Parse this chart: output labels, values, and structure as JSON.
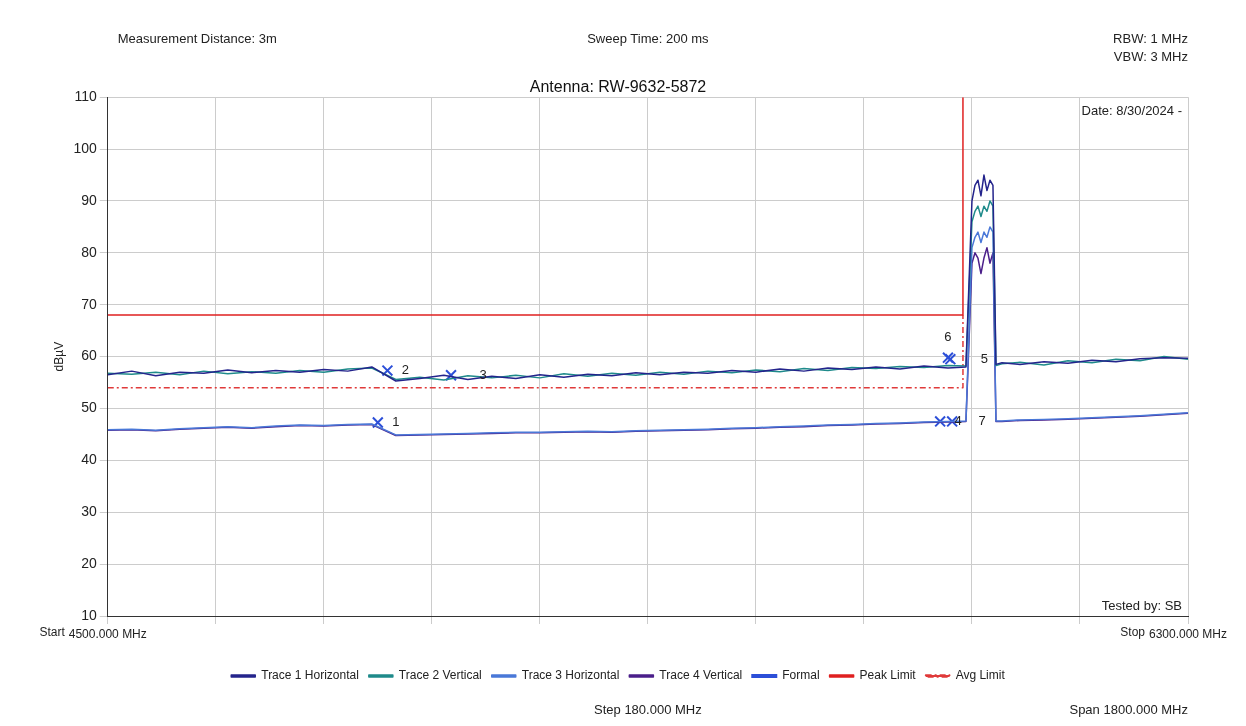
{
  "chart_data": {
    "type": "line",
    "title": "Antenna: RW-9632-5872",
    "ylabel": "dBµV",
    "xlim": [
      4500,
      6300
    ],
    "ylim": [
      10,
      110
    ],
    "xticks": [
      {
        "value": 4500,
        "label": "4500.000 MHz"
      },
      {
        "value": 4680,
        "label": null
      },
      {
        "value": 4860,
        "label": null
      },
      {
        "value": 5040,
        "label": null
      },
      {
        "value": 5220,
        "label": null
      },
      {
        "value": 5400,
        "label": null
      },
      {
        "value": 5580,
        "label": null
      },
      {
        "value": 5760,
        "label": null
      },
      {
        "value": 5940,
        "label": null
      },
      {
        "value": 6120,
        "label": null
      },
      {
        "value": 6300,
        "label": "6300.000 MHz"
      }
    ],
    "yticks": [
      10,
      20,
      30,
      40,
      50,
      60,
      70,
      80,
      90,
      100,
      110
    ],
    "grid": true,
    "legend": "bottom",
    "x": [
      4500,
      4540,
      4580,
      4620,
      4660,
      4700,
      4740,
      4780,
      4820,
      4860,
      4900,
      4940,
      4980,
      5020,
      5060,
      5100,
      5140,
      5180,
      5220,
      5260,
      5300,
      5340,
      5380,
      5420,
      5460,
      5500,
      5540,
      5580,
      5620,
      5660,
      5700,
      5740,
      5780,
      5820,
      5860,
      5900,
      5930,
      5940,
      5945,
      5950,
      5955,
      5960,
      5965,
      5970,
      5975,
      5980,
      5990,
      6020,
      6060,
      6100,
      6140,
      6180,
      6220,
      6260,
      6300
    ],
    "series": [
      {
        "name": "Trace 1 Horizontal",
        "color": "#24248c",
        "values": [
          56.5,
          57.2,
          56.3,
          57,
          56.8,
          57.4,
          56.9,
          57.3,
          57,
          57.5,
          57.2,
          58,
          55.3,
          55.8,
          56.4,
          55.6,
          56.2,
          55.8,
          56.5,
          56,
          56.6,
          56.3,
          56.9,
          56.5,
          57,
          56.8,
          57.3,
          57,
          57.6,
          57.2,
          57.8,
          57.5,
          58,
          57.6,
          58.2,
          57.8,
          58,
          90,
          93,
          94,
          91,
          95,
          92,
          94,
          93,
          58.5,
          58.8,
          58.5,
          59,
          58.7,
          59.3,
          59,
          59.6,
          59.8,
          59.7
        ]
      },
      {
        "name": "Trace 2 Vertical",
        "color": "#1f8b8b",
        "values": [
          56.8,
          56.6,
          57,
          56.5,
          57.2,
          56.7,
          57.1,
          56.8,
          57.3,
          57,
          57.6,
          57.8,
          55.6,
          56,
          55.5,
          56.3,
          55.9,
          56.4,
          55.9,
          56.7,
          56.2,
          56.8,
          56.4,
          57,
          56.6,
          57.2,
          56.9,
          57.4,
          57.1,
          57.7,
          57.3,
          57.9,
          57.7,
          58.1,
          57.9,
          58.3,
          58.2,
          86,
          88,
          89,
          87,
          89,
          88,
          90,
          89,
          58.3,
          58.6,
          58.9,
          58.4,
          59.2,
          58.8,
          59.5,
          59.2,
          60,
          59.5
        ]
      },
      {
        "name": "Trace 3 Horizontal",
        "color": "#4a78d8",
        "values": [
          45.9,
          46,
          45.8,
          46.1,
          46.3,
          46.5,
          46.3,
          46.6,
          46.8,
          46.7,
          46.9,
          47,
          44.9,
          45,
          45.1,
          45.2,
          45.3,
          45.4,
          45.4,
          45.5,
          45.6,
          45.5,
          45.7,
          45.8,
          45.9,
          46,
          46.2,
          46.3,
          46.5,
          46.6,
          46.8,
          46.9,
          47.1,
          47.2,
          47.4,
          47.5,
          47.6,
          81,
          83,
          84,
          82,
          84,
          83,
          85,
          84,
          47.6,
          47.6,
          47.8,
          47.9,
          48,
          48.2,
          48.4,
          48.6,
          48.9,
          49.2
        ]
      },
      {
        "name": "Trace 4 Vertical",
        "color": "#4b1f8a",
        "values": [
          45.8,
          45.9,
          45.7,
          46,
          46.2,
          46.4,
          46.2,
          46.5,
          46.7,
          46.6,
          46.8,
          46.9,
          44.8,
          44.9,
          45,
          45.1,
          45.2,
          45.3,
          45.3,
          45.4,
          45.5,
          45.4,
          45.6,
          45.7,
          45.8,
          45.9,
          46.1,
          46.2,
          46.4,
          46.5,
          46.7,
          46.8,
          47,
          47.1,
          47.3,
          47.4,
          47.5,
          78,
          80,
          79,
          76,
          79,
          81,
          78,
          80,
          47.5,
          47.5,
          47.7,
          47.8,
          47.9,
          48.1,
          48.3,
          48.5,
          48.8,
          49.1
        ]
      },
      {
        "name": "Formal",
        "type": "scatter",
        "marker": "cross",
        "color": "#2c4fd8",
        "x": [
          4950,
          4966,
          5072,
          5887,
          5904,
          5900,
          5907
        ],
        "values": [
          47.3,
          57.3,
          56.4,
          47.5,
          59.5,
          59.8,
          47.5
        ]
      },
      {
        "name": "Peak Limit",
        "color": "#e02020",
        "x": [
          4500,
          5925,
          5925
        ],
        "values": [
          68,
          68,
          110
        ]
      },
      {
        "name": "Avg Limit",
        "line_style": "dashed",
        "color": "#e03a3a",
        "x": [
          4500,
          5925,
          5925
        ],
        "values": [
          54,
          54,
          68
        ]
      }
    ],
    "annotations": [
      "Measurement Distance: 3m",
      "Sweep Time: 200 ms",
      "RBW: 1 MHz",
      "VBW: 3 MHz",
      "Date: 8/30/2024 -",
      "Tested by: SB",
      "Start",
      "Stop",
      "Step 180.000 MHz",
      "Span 1800.000 MHz",
      {
        "text": "1",
        "x": 4950,
        "y": 47.3
      },
      {
        "text": "2",
        "x": 4966,
        "y": 57.3
      },
      {
        "text": "3",
        "x": 5072,
        "y": 56.4
      },
      {
        "text": "4",
        "x": 5887,
        "y": 47.5
      },
      {
        "text": "5",
        "x": 5904,
        "y": 59.5
      },
      {
        "text": "6",
        "x": 5900,
        "y": 59.8
      },
      {
        "text": "7",
        "x": 5907,
        "y": 47.5
      }
    ]
  }
}
